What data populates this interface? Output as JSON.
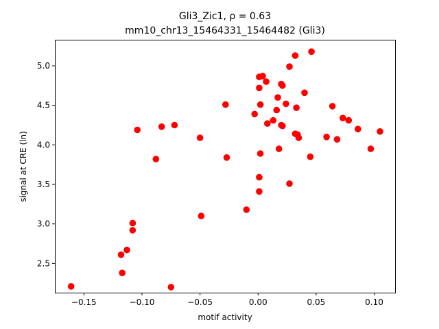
{
  "chart_data": {
    "type": "scatter",
    "title": "Gli3_Zic1, ρ = 0.63",
    "subtitle": "mm10_chr13_15464331_15464482 (Gli3)",
    "xlabel": "motif activity",
    "ylabel": "signal at CRE (ln)",
    "xlim": [
      -0.175,
      0.118
    ],
    "ylim": [
      2.13,
      5.33
    ],
    "xticks": [
      -0.15,
      -0.1,
      -0.05,
      0.0,
      0.05,
      0.1
    ],
    "xtick_labels": [
      "−0.15",
      "−0.10",
      "−0.05",
      "0.00",
      "0.05",
      "0.10"
    ],
    "yticks": [
      2.5,
      3.0,
      3.5,
      4.0,
      4.5,
      5.0
    ],
    "ytick_labels": [
      "2.5",
      "3.0",
      "3.5",
      "4.0",
      "4.5",
      "5.0"
    ],
    "grid": false,
    "marker_color": "#ff0000",
    "points": [
      {
        "x": -0.161,
        "y": 2.21
      },
      {
        "x": -0.118,
        "y": 2.61
      },
      {
        "x": -0.117,
        "y": 2.38
      },
      {
        "x": -0.113,
        "y": 2.67
      },
      {
        "x": -0.108,
        "y": 3.01
      },
      {
        "x": -0.108,
        "y": 2.92
      },
      {
        "x": -0.104,
        "y": 4.19
      },
      {
        "x": -0.088,
        "y": 3.82
      },
      {
        "x": -0.083,
        "y": 4.23
      },
      {
        "x": -0.075,
        "y": 2.2
      },
      {
        "x": -0.072,
        "y": 4.25
      },
      {
        "x": -0.05,
        "y": 4.09
      },
      {
        "x": -0.049,
        "y": 3.1
      },
      {
        "x": -0.028,
        "y": 4.51
      },
      {
        "x": -0.027,
        "y": 3.84
      },
      {
        "x": -0.01,
        "y": 3.18
      },
      {
        "x": -0.003,
        "y": 4.39
      },
      {
        "x": 0.001,
        "y": 4.86
      },
      {
        "x": 0.001,
        "y": 4.72
      },
      {
        "x": 0.001,
        "y": 3.59
      },
      {
        "x": 0.001,
        "y": 3.41
      },
      {
        "x": 0.002,
        "y": 4.51
      },
      {
        "x": 0.002,
        "y": 3.89
      },
      {
        "x": 0.004,
        "y": 4.87
      },
      {
        "x": 0.007,
        "y": 4.8
      },
      {
        "x": 0.008,
        "y": 4.27
      },
      {
        "x": 0.013,
        "y": 4.31
      },
      {
        "x": 0.016,
        "y": 4.44
      },
      {
        "x": 0.017,
        "y": 4.6
      },
      {
        "x": 0.018,
        "y": 3.95
      },
      {
        "x": 0.02,
        "y": 4.77
      },
      {
        "x": 0.02,
        "y": 4.25
      },
      {
        "x": 0.021,
        "y": 4.75
      },
      {
        "x": 0.021,
        "y": 4.24
      },
      {
        "x": 0.024,
        "y": 4.52
      },
      {
        "x": 0.027,
        "y": 4.99
      },
      {
        "x": 0.027,
        "y": 3.51
      },
      {
        "x": 0.032,
        "y": 5.13
      },
      {
        "x": 0.032,
        "y": 4.14
      },
      {
        "x": 0.033,
        "y": 4.47
      },
      {
        "x": 0.034,
        "y": 4.13
      },
      {
        "x": 0.035,
        "y": 4.09
      },
      {
        "x": 0.04,
        "y": 4.66
      },
      {
        "x": 0.045,
        "y": 3.85
      },
      {
        "x": 0.046,
        "y": 5.18
      },
      {
        "x": 0.059,
        "y": 4.1
      },
      {
        "x": 0.064,
        "y": 4.49
      },
      {
        "x": 0.068,
        "y": 4.07
      },
      {
        "x": 0.073,
        "y": 4.34
      },
      {
        "x": 0.078,
        "y": 4.31
      },
      {
        "x": 0.086,
        "y": 4.2
      },
      {
        "x": 0.097,
        "y": 3.95
      },
      {
        "x": 0.105,
        "y": 4.17
      }
    ]
  }
}
